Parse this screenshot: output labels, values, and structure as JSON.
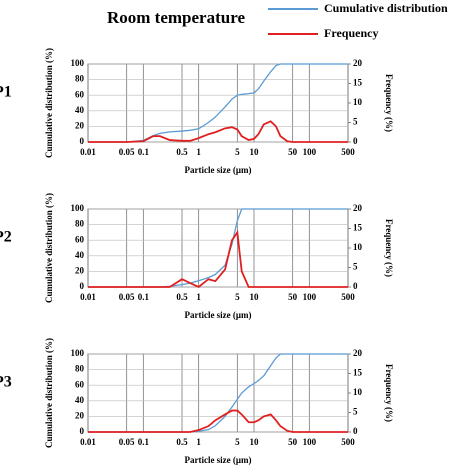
{
  "chart_data": [
    {
      "type": "line",
      "title": "Room temperature",
      "panel": "P1",
      "xlabel": "Particle size (μm)",
      "ylabel": "Cumulative distribution (%)",
      "y2label": "Frequency (%)",
      "log_x": true,
      "grid": true,
      "xlim": [
        0.01,
        500
      ],
      "xticks": [
        0.01,
        0.05,
        0.1,
        0.5,
        1,
        5,
        10,
        50,
        100,
        500
      ],
      "ylim": [
        0,
        100
      ],
      "yticks": [
        0,
        20,
        40,
        60,
        80,
        100
      ],
      "y2lim": [
        0,
        20
      ],
      "y2ticks": [
        0,
        5,
        10,
        15,
        20
      ],
      "x": [
        0.01,
        0.02,
        0.05,
        0.1,
        0.15,
        0.2,
        0.3,
        0.5,
        0.7,
        1,
        1.5,
        2,
        3,
        4,
        5,
        6,
        8,
        10,
        12,
        15,
        20,
        25,
        30,
        40,
        50,
        100,
        500
      ],
      "series": [
        {
          "name": "Cumulative distribution",
          "color": "#5b9bd5",
          "axis": "y",
          "values": [
            0,
            0,
            0,
            2,
            8,
            11,
            13,
            14,
            15,
            17,
            25,
            32,
            45,
            55,
            60,
            61,
            62,
            63,
            68,
            78,
            90,
            98,
            100,
            100,
            100,
            100,
            100
          ]
        },
        {
          "name": "Frequency",
          "color": "#e02020",
          "axis": "y2",
          "values": [
            0,
            0,
            0,
            0.2,
            1.5,
            1.5,
            0.5,
            0.3,
            0.3,
            1,
            2,
            2.5,
            3.5,
            3.8,
            3.2,
            1.5,
            0.5,
            0.8,
            2,
            4.5,
            5.3,
            4,
            1.5,
            0.2,
            0,
            0,
            0
          ]
        }
      ]
    },
    {
      "type": "line",
      "panel": "P2",
      "xlabel": "Particle size (μm)",
      "ylabel": "Cumulative distribution (%)",
      "y2label": "Frequency (%)",
      "log_x": true,
      "grid": true,
      "xlim": [
        0.01,
        500
      ],
      "xticks": [
        0.01,
        0.05,
        0.1,
        0.5,
        1,
        5,
        10,
        50,
        100,
        500
      ],
      "ylim": [
        0,
        100
      ],
      "yticks": [
        0,
        20,
        40,
        60,
        80,
        100
      ],
      "y2lim": [
        0,
        20
      ],
      "y2ticks": [
        0,
        5,
        10,
        15,
        20
      ],
      "x": [
        0.01,
        0.02,
        0.05,
        0.1,
        0.15,
        0.2,
        0.3,
        0.5,
        0.7,
        1,
        1.5,
        2,
        3,
        4,
        5,
        6,
        8,
        10,
        12,
        15,
        20,
        25,
        30,
        40,
        50,
        100,
        500
      ],
      "series": [
        {
          "color": "#5b9bd5",
          "axis": "y",
          "values": [
            0,
            0,
            0,
            0,
            0,
            0,
            1,
            3,
            5,
            8,
            12,
            16,
            28,
            55,
            85,
            100,
            100,
            100,
            100,
            100,
            100,
            100,
            100,
            100,
            100,
            100,
            100
          ]
        },
        {
          "color": "#e02020",
          "axis": "y2",
          "values": [
            0,
            0,
            0,
            0,
            0,
            0,
            0,
            2,
            1,
            0,
            2,
            1.5,
            4.5,
            12,
            14,
            4,
            0,
            0,
            0,
            0,
            0,
            0,
            0,
            0,
            0,
            0,
            0
          ]
        }
      ]
    },
    {
      "type": "line",
      "panel": "P3",
      "xlabel": "Particle size (μm)",
      "ylabel": "Cumulative distribution (%)",
      "y2label": "Frequency (%)",
      "log_x": true,
      "grid": true,
      "xlim": [
        0.01,
        500
      ],
      "xticks": [
        0.01,
        0.05,
        0.1,
        0.5,
        1,
        5,
        10,
        50,
        100,
        500
      ],
      "ylim": [
        0,
        100
      ],
      "yticks": [
        0,
        20,
        40,
        60,
        80,
        100
      ],
      "y2lim": [
        0,
        20
      ],
      "y2ticks": [
        0,
        5,
        10,
        15,
        20
      ],
      "x": [
        0.01,
        0.02,
        0.05,
        0.1,
        0.15,
        0.2,
        0.3,
        0.5,
        0.7,
        1,
        1.5,
        2,
        3,
        4,
        5,
        6,
        8,
        10,
        12,
        15,
        20,
        25,
        30,
        40,
        50,
        100,
        500
      ],
      "series": [
        {
          "color": "#5b9bd5",
          "axis": "y",
          "values": [
            0,
            0,
            0,
            0,
            0,
            0,
            0,
            0,
            0,
            1,
            3,
            8,
            20,
            32,
            42,
            50,
            58,
            62,
            66,
            72,
            85,
            95,
            100,
            100,
            100,
            100,
            100
          ]
        },
        {
          "color": "#e02020",
          "axis": "y2",
          "values": [
            0,
            0,
            0,
            0,
            0,
            0,
            0,
            0,
            0,
            0.5,
            1.5,
            3,
            4.5,
            5.5,
            5.5,
            4.5,
            2.5,
            2.5,
            3,
            4,
            4.5,
            3,
            1.5,
            0.3,
            0,
            0,
            0
          ]
        }
      ]
    }
  ]
}
